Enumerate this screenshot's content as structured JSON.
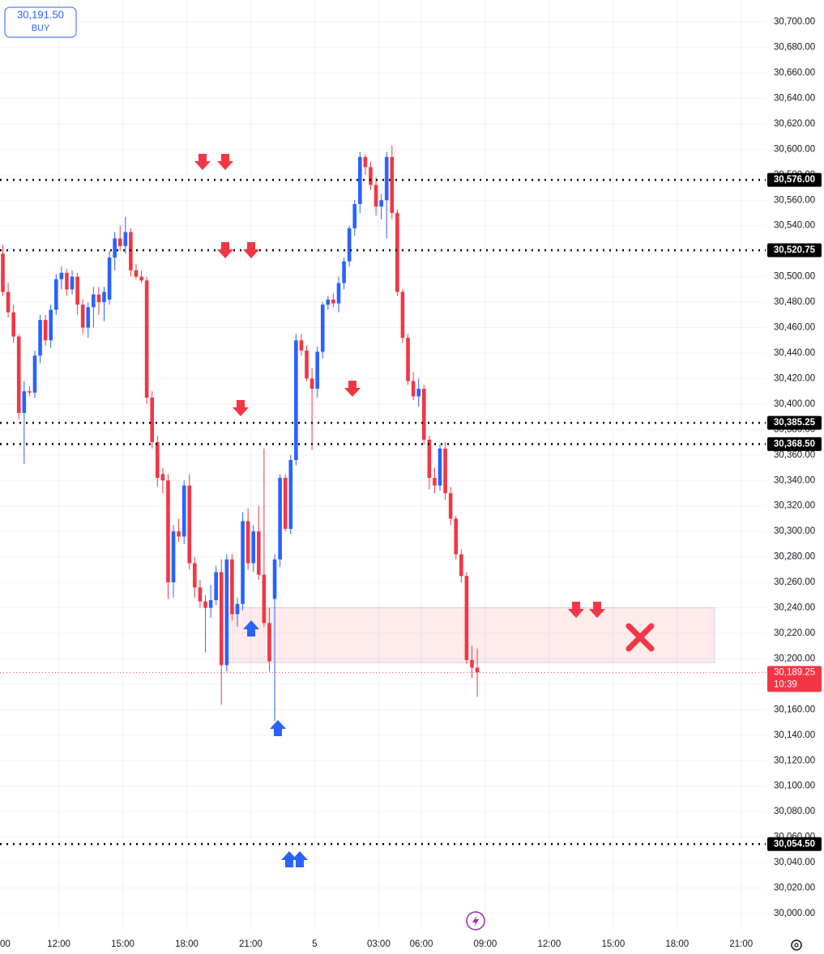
{
  "chart_data": {
    "type": "candlestick",
    "up_color": "#2962ff",
    "down_color": "#f23645",
    "ylim": [
      29986,
      30717.2
    ],
    "xlim": [
      -0.53,
      143.1
    ],
    "grid": true,
    "yticks": [
      {
        "value": 30000,
        "label": "30,000.00"
      },
      {
        "value": 30020,
        "label": "30,020.00"
      },
      {
        "value": 30040,
        "label": "30,040.00"
      },
      {
        "value": 30060,
        "label": "30,060.00"
      },
      {
        "value": 30080,
        "label": "30,080.00"
      },
      {
        "value": 30100,
        "label": "30,100.00"
      },
      {
        "value": 30120,
        "label": "30,120.00"
      },
      {
        "value": 30140,
        "label": "30,140.00"
      },
      {
        "value": 30160,
        "label": "30,160.00"
      },
      {
        "value": 30180,
        "label": "30,180.00"
      },
      {
        "value": 30200,
        "label": "30,200.00"
      },
      {
        "value": 30220,
        "label": "30,220.00"
      },
      {
        "value": 30240,
        "label": "30,240.00"
      },
      {
        "value": 30260,
        "label": "30,260.00"
      },
      {
        "value": 30280,
        "label": "30,280.00"
      },
      {
        "value": 30300,
        "label": "30,300.00"
      },
      {
        "value": 30320,
        "label": "30,320.00"
      },
      {
        "value": 30340,
        "label": "30,340.00"
      },
      {
        "value": 30360,
        "label": "30,360.00"
      },
      {
        "value": 30380,
        "label": "30,380.00"
      },
      {
        "value": 30400,
        "label": "30,400.00"
      },
      {
        "value": 30420,
        "label": "30,420.00"
      },
      {
        "value": 30440,
        "label": "30,440.00"
      },
      {
        "value": 30460,
        "label": "30,460.00"
      },
      {
        "value": 30480,
        "label": "30,480.00"
      },
      {
        "value": 30500,
        "label": "30,500.00"
      },
      {
        "value": 30520,
        "label": "30,520.00"
      },
      {
        "value": 30540,
        "label": "30,540.00"
      },
      {
        "value": 30560,
        "label": "30,560.00"
      },
      {
        "value": 30580,
        "label": "30,580.00"
      },
      {
        "value": 30600,
        "label": "30,600.00"
      },
      {
        "value": 30620,
        "label": "30,620.00"
      },
      {
        "value": 30640,
        "label": "30,640.00"
      },
      {
        "value": 30660,
        "label": "30,660.00"
      },
      {
        "value": 30680,
        "label": "30,680.00"
      },
      {
        "value": 30700,
        "label": "30,700.00"
      }
    ],
    "xticks": [
      {
        "value": -1.5,
        "label": "00"
      },
      {
        "value": 10.5,
        "label": "12:00"
      },
      {
        "value": 22.5,
        "label": "15:00"
      },
      {
        "value": 34.5,
        "label": "18:00"
      },
      {
        "value": 46.5,
        "label": "21:00"
      },
      {
        "value": 58.5,
        "label": "5"
      },
      {
        "value": 70.5,
        "label": "03:00"
      },
      {
        "value": 78.5,
        "label": "06:00"
      },
      {
        "value": 90.5,
        "label": "09:00"
      },
      {
        "value": 102.5,
        "label": "12:00"
      },
      {
        "value": 114.5,
        "label": "15:00"
      },
      {
        "value": 126.5,
        "label": "18:00"
      },
      {
        "value": 138.5,
        "label": "21:00"
      }
    ],
    "candles": [
      [
        30518,
        30525,
        30485,
        30488
      ],
      [
        30488,
        30495,
        30468,
        30472
      ],
      [
        30472,
        30478,
        30448,
        30453
      ],
      [
        30453,
        30455,
        30388,
        30393
      ],
      [
        30393,
        30418,
        30353,
        30410
      ],
      [
        30410,
        30414,
        30406,
        30409
      ],
      [
        30409,
        30442,
        30405,
        30438
      ],
      [
        30438,
        30470,
        30432,
        30466
      ],
      [
        30466,
        30470,
        30446,
        30450
      ],
      [
        30450,
        30478,
        30444,
        30474
      ],
      [
        30474,
        30502,
        30470,
        30498
      ],
      [
        30498,
        30508,
        30490,
        30503
      ],
      [
        30503,
        30506,
        30485,
        30490
      ],
      [
        30490,
        30505,
        30486,
        30500
      ],
      [
        30500,
        30503,
        30470,
        30478
      ],
      [
        30478,
        30482,
        30455,
        30460
      ],
      [
        30460,
        30480,
        30452,
        30476
      ],
      [
        30476,
        30492,
        30460,
        30486
      ],
      [
        30486,
        30492,
        30470,
        30480
      ],
      [
        30480,
        30492,
        30465,
        30488
      ],
      [
        30482,
        30520,
        30478,
        30515
      ],
      [
        30515,
        30535,
        30505,
        30530
      ],
      [
        30530,
        30540,
        30520,
        30524
      ],
      [
        30524,
        30547,
        30518,
        30535
      ],
      [
        30535,
        30538,
        30500,
        30505
      ],
      [
        30505,
        30510,
        30498,
        30500
      ],
      [
        30500,
        30505,
        30495,
        30497
      ],
      [
        30497,
        30500,
        30400,
        30405
      ],
      [
        30405,
        30410,
        30365,
        30370
      ],
      [
        30370,
        30375,
        30335,
        30342
      ],
      [
        30345,
        30350,
        30330,
        30340
      ],
      [
        30340,
        30345,
        30247,
        30260
      ],
      [
        30260,
        30305,
        30248,
        30300
      ],
      [
        30300,
        30310,
        30292,
        30296
      ],
      [
        30296,
        30340,
        30290,
        30336
      ],
      [
        30336,
        30345,
        30270,
        30275
      ],
      [
        30275,
        30280,
        30248,
        30256
      ],
      [
        30256,
        30262,
        30240,
        30245
      ],
      [
        30245,
        30250,
        30205,
        30240
      ],
      [
        30240,
        30258,
        30232,
        30246
      ],
      [
        30246,
        30273,
        30242,
        30268
      ],
      [
        30268,
        30278,
        30164,
        30195
      ],
      [
        30195,
        30282,
        30190,
        30278
      ],
      [
        30278,
        30282,
        30230,
        30235
      ],
      [
        30235,
        30248,
        30225,
        30243
      ],
      [
        30243,
        30315,
        30238,
        30308
      ],
      [
        30308,
        30318,
        30270,
        30275
      ],
      [
        30275,
        30305,
        30268,
        30300
      ],
      [
        30300,
        30320,
        30262,
        30266
      ],
      [
        30266,
        30365,
        30225,
        30228
      ],
      [
        30228,
        30240,
        30190,
        30198
      ],
      [
        30247,
        30282,
        30151,
        30278
      ],
      [
        30278,
        30345,
        30272,
        30342
      ],
      [
        30342,
        30345,
        30300,
        30302
      ],
      [
        30302,
        30360,
        30298,
        30356
      ],
      [
        30356,
        30455,
        30352,
        30450
      ],
      [
        30450,
        30455,
        30438,
        30442
      ],
      [
        30442,
        30446,
        30418,
        30420
      ],
      [
        30420,
        30428,
        30364,
        30412
      ],
      [
        30412,
        30445,
        30405,
        30441
      ],
      [
        30441,
        30480,
        30436,
        30478
      ],
      [
        30478,
        30485,
        30474,
        30482
      ],
      [
        30482,
        30487,
        30476,
        30479
      ],
      [
        30479,
        30500,
        30472,
        30495
      ],
      [
        30495,
        30515,
        30490,
        30512
      ],
      [
        30512,
        30540,
        30508,
        30538
      ],
      [
        30538,
        30560,
        30532,
        30557
      ],
      [
        30557,
        30598,
        30550,
        30594
      ],
      [
        30594,
        30596,
        30580,
        30586
      ],
      [
        30586,
        30590,
        30568,
        30572
      ],
      [
        30572,
        30578,
        30548,
        30555
      ],
      [
        30555,
        30565,
        30545,
        30560
      ],
      [
        30560,
        30598,
        30530,
        30594
      ],
      [
        30594,
        30603,
        30545,
        30550
      ],
      [
        30550,
        30553,
        30485,
        30488
      ],
      [
        30488,
        30490,
        30448,
        30452
      ],
      [
        30452,
        30455,
        30415,
        30418
      ],
      [
        30418,
        30425,
        30403,
        30406
      ],
      [
        30406,
        30420,
        30398,
        30412
      ],
      [
        30412,
        30415,
        30368,
        30372
      ],
      [
        30372,
        30375,
        30333,
        30342
      ],
      [
        30342,
        30350,
        30330,
        30336
      ],
      [
        30336,
        30368,
        30332,
        30365
      ],
      [
        30365,
        30370,
        30325,
        30330
      ],
      [
        30330,
        30335,
        30305,
        30310
      ],
      [
        30310,
        30312,
        30278,
        30282
      ],
      [
        30282,
        30286,
        30260,
        30265
      ],
      [
        30265,
        30268,
        30196,
        30199
      ],
      [
        30199,
        30210,
        30185,
        30193
      ],
      [
        30193,
        30208,
        30170,
        30189.25
      ]
    ],
    "levels": [
      {
        "value": 30576,
        "label": "30,576.00"
      },
      {
        "value": 30520.75,
        "label": "30,520.75"
      },
      {
        "value": 30385.25,
        "label": "30,385.25"
      },
      {
        "value": 30368.5,
        "label": "30,368.50"
      },
      {
        "value": 30054.5,
        "label": "30,054.50"
      }
    ],
    "last_price": {
      "value": 30189.25,
      "label": "30,189.25",
      "countdown": "10:39"
    },
    "zone": {
      "top": 30240,
      "bottom": 30197,
      "from": 42,
      "to": 133.5
    },
    "order_box": {
      "price": "30,191.50",
      "side": "BUY"
    }
  }
}
